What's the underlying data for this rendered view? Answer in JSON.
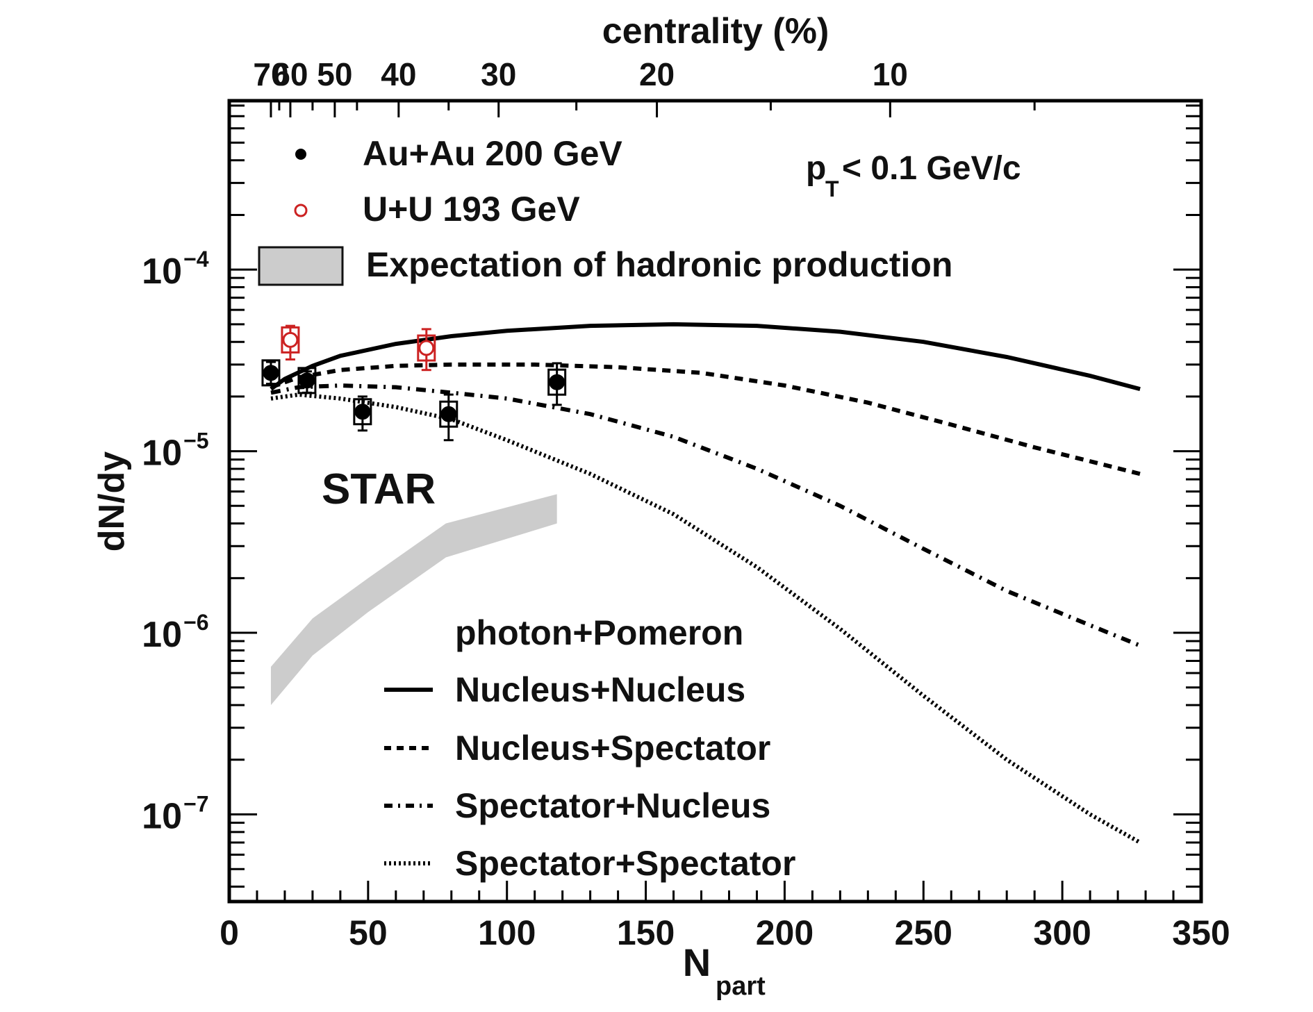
{
  "chart_data": {
    "type": "scatter",
    "title": "",
    "xlabel": "N",
    "xlabel_sub": "part",
    "ylabel": "dN/dy",
    "xlim": [
      0,
      350
    ],
    "ylim_log10": [
      -7.48,
      -3.07
    ],
    "yscale": "log",
    "x_ticks": [
      0,
      50,
      100,
      150,
      200,
      250,
      300,
      350
    ],
    "x_tick_labels": [
      "0",
      "50",
      "100",
      "150",
      "200",
      "250",
      "300",
      "350"
    ],
    "y_ticks_log10": [
      -4,
      -5,
      -6,
      -7
    ],
    "y_tick_labels": [
      {
        "base": "10",
        "exp": "−4"
      },
      {
        "base": "10",
        "exp": "−5"
      },
      {
        "base": "10",
        "exp": "−6"
      },
      {
        "base": "10",
        "exp": "−7"
      }
    ],
    "top_axis": {
      "label": "centrality (%)",
      "ticks": [
        {
          "label": "70",
          "npart": 15
        },
        {
          "label": "60",
          "npart": 22
        },
        {
          "label": "50",
          "npart": 38
        },
        {
          "label": "40",
          "npart": 61
        },
        {
          "label": "30",
          "npart": 97
        },
        {
          "label": "20",
          "npart": 154
        },
        {
          "label": "10",
          "npart": 238
        }
      ]
    },
    "annotations": {
      "pt_cut_prefix": "p",
      "pt_cut_sub": "T",
      "pt_cut_suffix": " < 0.1 GeV/c",
      "experiment": "STAR"
    },
    "legend_top": [
      {
        "name": "Au+Au 200 GeV",
        "marker": "filled-circle",
        "color": "#000000"
      },
      {
        "name": "U+U 193 GeV",
        "marker": "open-circle",
        "color": "#cc2222"
      },
      {
        "name": "Expectation of hadronic production",
        "marker": "band",
        "color": "#cccccc"
      }
    ],
    "legend_bottom": {
      "header": "photon+Pomeron",
      "entries": [
        {
          "name": "Nucleus+Nucleus",
          "style": "solid"
        },
        {
          "name": "Nucleus+Spectator",
          "style": "dashed"
        },
        {
          "name": "Spectator+Nucleus",
          "style": "dashdot"
        },
        {
          "name": "Spectator+Spectator",
          "style": "dotted"
        }
      ]
    },
    "series": [
      {
        "name": "Au+Au 200 GeV",
        "kind": "points",
        "color": "#000000",
        "points": [
          {
            "x": 15,
            "y": 2.7e-05,
            "yerr_lo": 3.5e-06,
            "yerr_hi": 4e-06
          },
          {
            "x": 28,
            "y": 2.45e-05,
            "yerr_lo": 3.5e-06,
            "yerr_hi": 3e-06
          },
          {
            "x": 48,
            "y": 1.65e-05,
            "yerr_lo": 3.5e-06,
            "yerr_hi": 3.5e-06
          },
          {
            "x": 79,
            "y": 1.6e-05,
            "yerr_lo": 4.5e-06,
            "yerr_hi": 4.5e-06
          },
          {
            "x": 118,
            "y": 2.4e-05,
            "yerr_lo": 6e-06,
            "yerr_hi": 6.5e-06
          }
        ]
      },
      {
        "name": "U+U 193 GeV",
        "kind": "points",
        "color": "#cc2222",
        "points": [
          {
            "x": 22,
            "y": 4.1e-05,
            "yerr_lo": 9e-06,
            "yerr_hi": 8e-06
          },
          {
            "x": 71,
            "y": 3.7e-05,
            "yerr_lo": 9e-06,
            "yerr_hi": 1e-05
          }
        ]
      },
      {
        "name": "Nucleus+Nucleus",
        "kind": "line",
        "style": "solid",
        "points": [
          [
            15,
            2.2e-05
          ],
          [
            20,
            2.5e-05
          ],
          [
            30,
            2.95e-05
          ],
          [
            40,
            3.35e-05
          ],
          [
            60,
            3.9e-05
          ],
          [
            80,
            4.3e-05
          ],
          [
            100,
            4.6e-05
          ],
          [
            130,
            4.9e-05
          ],
          [
            160,
            5e-05
          ],
          [
            190,
            4.9e-05
          ],
          [
            220,
            4.55e-05
          ],
          [
            250,
            4e-05
          ],
          [
            280,
            3.3e-05
          ],
          [
            310,
            2.6e-05
          ],
          [
            328,
            2.2e-05
          ]
        ]
      },
      {
        "name": "Nucleus+Spectator",
        "kind": "line",
        "style": "dashed",
        "points": [
          [
            15,
            2.25e-05
          ],
          [
            25,
            2.55e-05
          ],
          [
            40,
            2.8e-05
          ],
          [
            60,
            2.95e-05
          ],
          [
            80,
            3e-05
          ],
          [
            110,
            3e-05
          ],
          [
            140,
            2.9e-05
          ],
          [
            170,
            2.7e-05
          ],
          [
            200,
            2.3e-05
          ],
          [
            230,
            1.85e-05
          ],
          [
            260,
            1.4e-05
          ],
          [
            290,
            1.05e-05
          ],
          [
            310,
            8.8e-06
          ],
          [
            328,
            7.5e-06
          ]
        ]
      },
      {
        "name": "Spectator+Nucleus",
        "kind": "line",
        "style": "dashdot",
        "points": [
          [
            15,
            2.1e-05
          ],
          [
            25,
            2.25e-05
          ],
          [
            40,
            2.3e-05
          ],
          [
            60,
            2.25e-05
          ],
          [
            80,
            2.1e-05
          ],
          [
            100,
            1.95e-05
          ],
          [
            130,
            1.6e-05
          ],
          [
            160,
            1.2e-05
          ],
          [
            190,
            8e-06
          ],
          [
            220,
            5e-06
          ],
          [
            250,
            2.9e-06
          ],
          [
            280,
            1.7e-06
          ],
          [
            310,
            1.1e-06
          ],
          [
            328,
            8.5e-07
          ]
        ]
      },
      {
        "name": "Spectator+Spectator",
        "kind": "line",
        "style": "dotted",
        "points": [
          [
            15,
            1.95e-05
          ],
          [
            25,
            2.05e-05
          ],
          [
            40,
            1.95e-05
          ],
          [
            60,
            1.75e-05
          ],
          [
            80,
            1.5e-05
          ],
          [
            100,
            1.15e-05
          ],
          [
            130,
            7.5e-06
          ],
          [
            160,
            4.5e-06
          ],
          [
            190,
            2.3e-06
          ],
          [
            220,
            1.05e-06
          ],
          [
            250,
            4.5e-07
          ],
          [
            280,
            2e-07
          ],
          [
            310,
            1e-07
          ],
          [
            328,
            7e-08
          ]
        ]
      },
      {
        "name": "Expectation of hadronic production",
        "kind": "band",
        "color": "#cccccc",
        "upper": [
          [
            15,
            6.5e-07
          ],
          [
            30,
            1.2e-06
          ],
          [
            50,
            2e-06
          ],
          [
            78,
            4e-06
          ],
          [
            118,
            5.8e-06
          ]
        ],
        "lower": [
          [
            15,
            4e-07
          ],
          [
            30,
            7.5e-07
          ],
          [
            50,
            1.3e-06
          ],
          [
            78,
            2.6e-06
          ],
          [
            118,
            4e-06
          ]
        ]
      }
    ]
  }
}
